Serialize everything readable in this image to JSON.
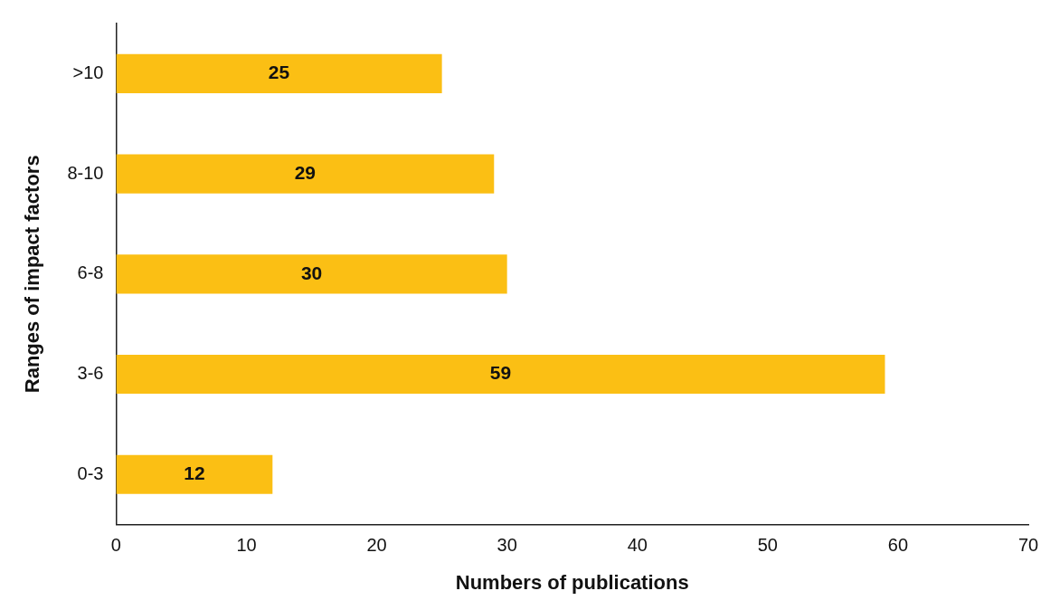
{
  "chart_data": {
    "type": "bar",
    "orientation": "horizontal",
    "categories": [
      ">10",
      "8-10",
      "6-8",
      "3-6",
      "0-3"
    ],
    "values": [
      25,
      29,
      30,
      59,
      12
    ],
    "color": "#fbbf14",
    "data_labels": true,
    "xlabel": "Numbers of publications",
    "ylabel": "Ranges of impact factors",
    "xlim": [
      0,
      70
    ],
    "xticks": [
      0,
      10,
      20,
      30,
      40,
      50,
      60,
      70
    ],
    "grid": false,
    "legend": false
  }
}
